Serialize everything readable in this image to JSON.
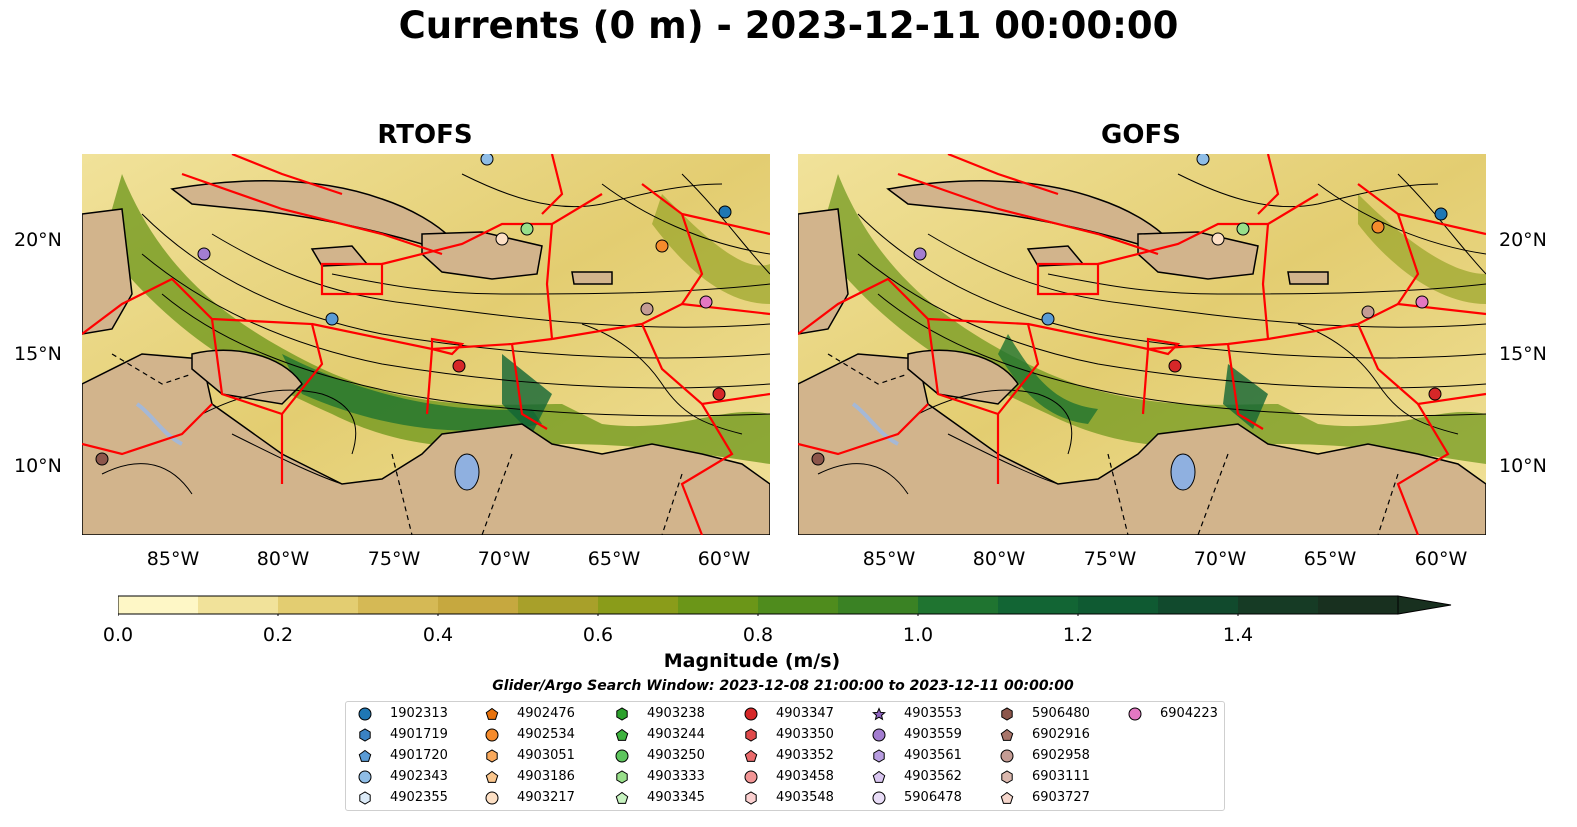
{
  "title": "Currents (0 m) - 2023-12-11 00:00:00",
  "panels": [
    {
      "title": "RTOFS"
    },
    {
      "title": "GOFS"
    }
  ],
  "axes": {
    "lat_ticks": [
      "20°N",
      "15°N",
      "10°N"
    ],
    "lon_ticks": [
      "85°W",
      "80°W",
      "75°W",
      "70°W",
      "65°W",
      "60°W"
    ]
  },
  "colorbar": {
    "label": "Magnitude (m/s)",
    "ticks": [
      "0.0",
      "0.2",
      "0.4",
      "0.6",
      "0.8",
      "1.0",
      "1.2",
      "1.4"
    ],
    "range": [
      0.0,
      1.6
    ],
    "extend": "max",
    "colors": [
      "#fef7c6",
      "#f1e29a",
      "#e3cd71",
      "#d5b955",
      "#c6a83f",
      "#a8a02a",
      "#8a9c1a",
      "#6b9618",
      "#4f8c1d",
      "#3a8224",
      "#1f7430",
      "#126534",
      "#0f5a32",
      "#114a2d",
      "#163b25",
      "#18301f"
    ]
  },
  "map_colors": {
    "land": "#d2b48c",
    "lake": "#8fb0e0",
    "river": "#a5b8d6",
    "eez_lines": "#ff0000",
    "streamlines": "#000000"
  },
  "search_window": "Glider/Argo Search Window: 2023-12-08 21:00:00 to 2023-12-11 00:00:00",
  "legend": [
    {
      "id": "1902313",
      "marker": "circle",
      "color": "#1f77b4"
    },
    {
      "id": "4901719",
      "marker": "hexagon",
      "color": "#3a82c4"
    },
    {
      "id": "4901720",
      "marker": "pentagon",
      "color": "#5a9bd5"
    },
    {
      "id": "4902343",
      "marker": "circle",
      "color": "#8fbde6"
    },
    {
      "id": "4902355",
      "marker": "hexagon",
      "color": "#dbeaf7"
    },
    {
      "id": "4902476",
      "marker": "pentagon",
      "color": "#e8720c"
    },
    {
      "id": "4902534",
      "marker": "circle",
      "color": "#f58b2c"
    },
    {
      "id": "4903051",
      "marker": "hexagon",
      "color": "#f9a95c"
    },
    {
      "id": "4903186",
      "marker": "pentagon",
      "color": "#fbc68d"
    },
    {
      "id": "4903217",
      "marker": "circle",
      "color": "#fde0c5"
    },
    {
      "id": "4903238",
      "marker": "hexagon",
      "color": "#2ca02c"
    },
    {
      "id": "4903244",
      "marker": "pentagon",
      "color": "#3db23d"
    },
    {
      "id": "4903250",
      "marker": "circle",
      "color": "#5dc55d"
    },
    {
      "id": "4903333",
      "marker": "hexagon",
      "color": "#98df8a"
    },
    {
      "id": "4903345",
      "marker": "pentagon",
      "color": "#c7f3c0"
    },
    {
      "id": "4903347",
      "marker": "circle",
      "color": "#d62728"
    },
    {
      "id": "4903350",
      "marker": "hexagon",
      "color": "#e04a4b"
    },
    {
      "id": "4903352",
      "marker": "pentagon",
      "color": "#ea6a6b"
    },
    {
      "id": "4903458",
      "marker": "circle",
      "color": "#f29595"
    },
    {
      "id": "4903548",
      "marker": "hexagon",
      "color": "#fbd0d0"
    },
    {
      "id": "4903553",
      "marker": "star",
      "color": "#8e63bf"
    },
    {
      "id": "4903559",
      "marker": "circle",
      "color": "#a37dd0"
    },
    {
      "id": "4903561",
      "marker": "hexagon",
      "color": "#b89de0"
    },
    {
      "id": "4903562",
      "marker": "pentagon",
      "color": "#d9c6f0"
    },
    {
      "id": "5906478",
      "marker": "circle",
      "color": "#e9ddf7"
    },
    {
      "id": "5906480",
      "marker": "hexagon",
      "color": "#8c564b"
    },
    {
      "id": "6902916",
      "marker": "pentagon",
      "color": "#a8756a"
    },
    {
      "id": "6902958",
      "marker": "circle",
      "color": "#c49c94"
    },
    {
      "id": "6903111",
      "marker": "hexagon",
      "color": "#dbb8ae"
    },
    {
      "id": "6903727",
      "marker": "pentagon",
      "color": "#f5d6cc"
    },
    {
      "id": "6904223",
      "marker": "circle",
      "color": "#e377c2"
    }
  ]
}
